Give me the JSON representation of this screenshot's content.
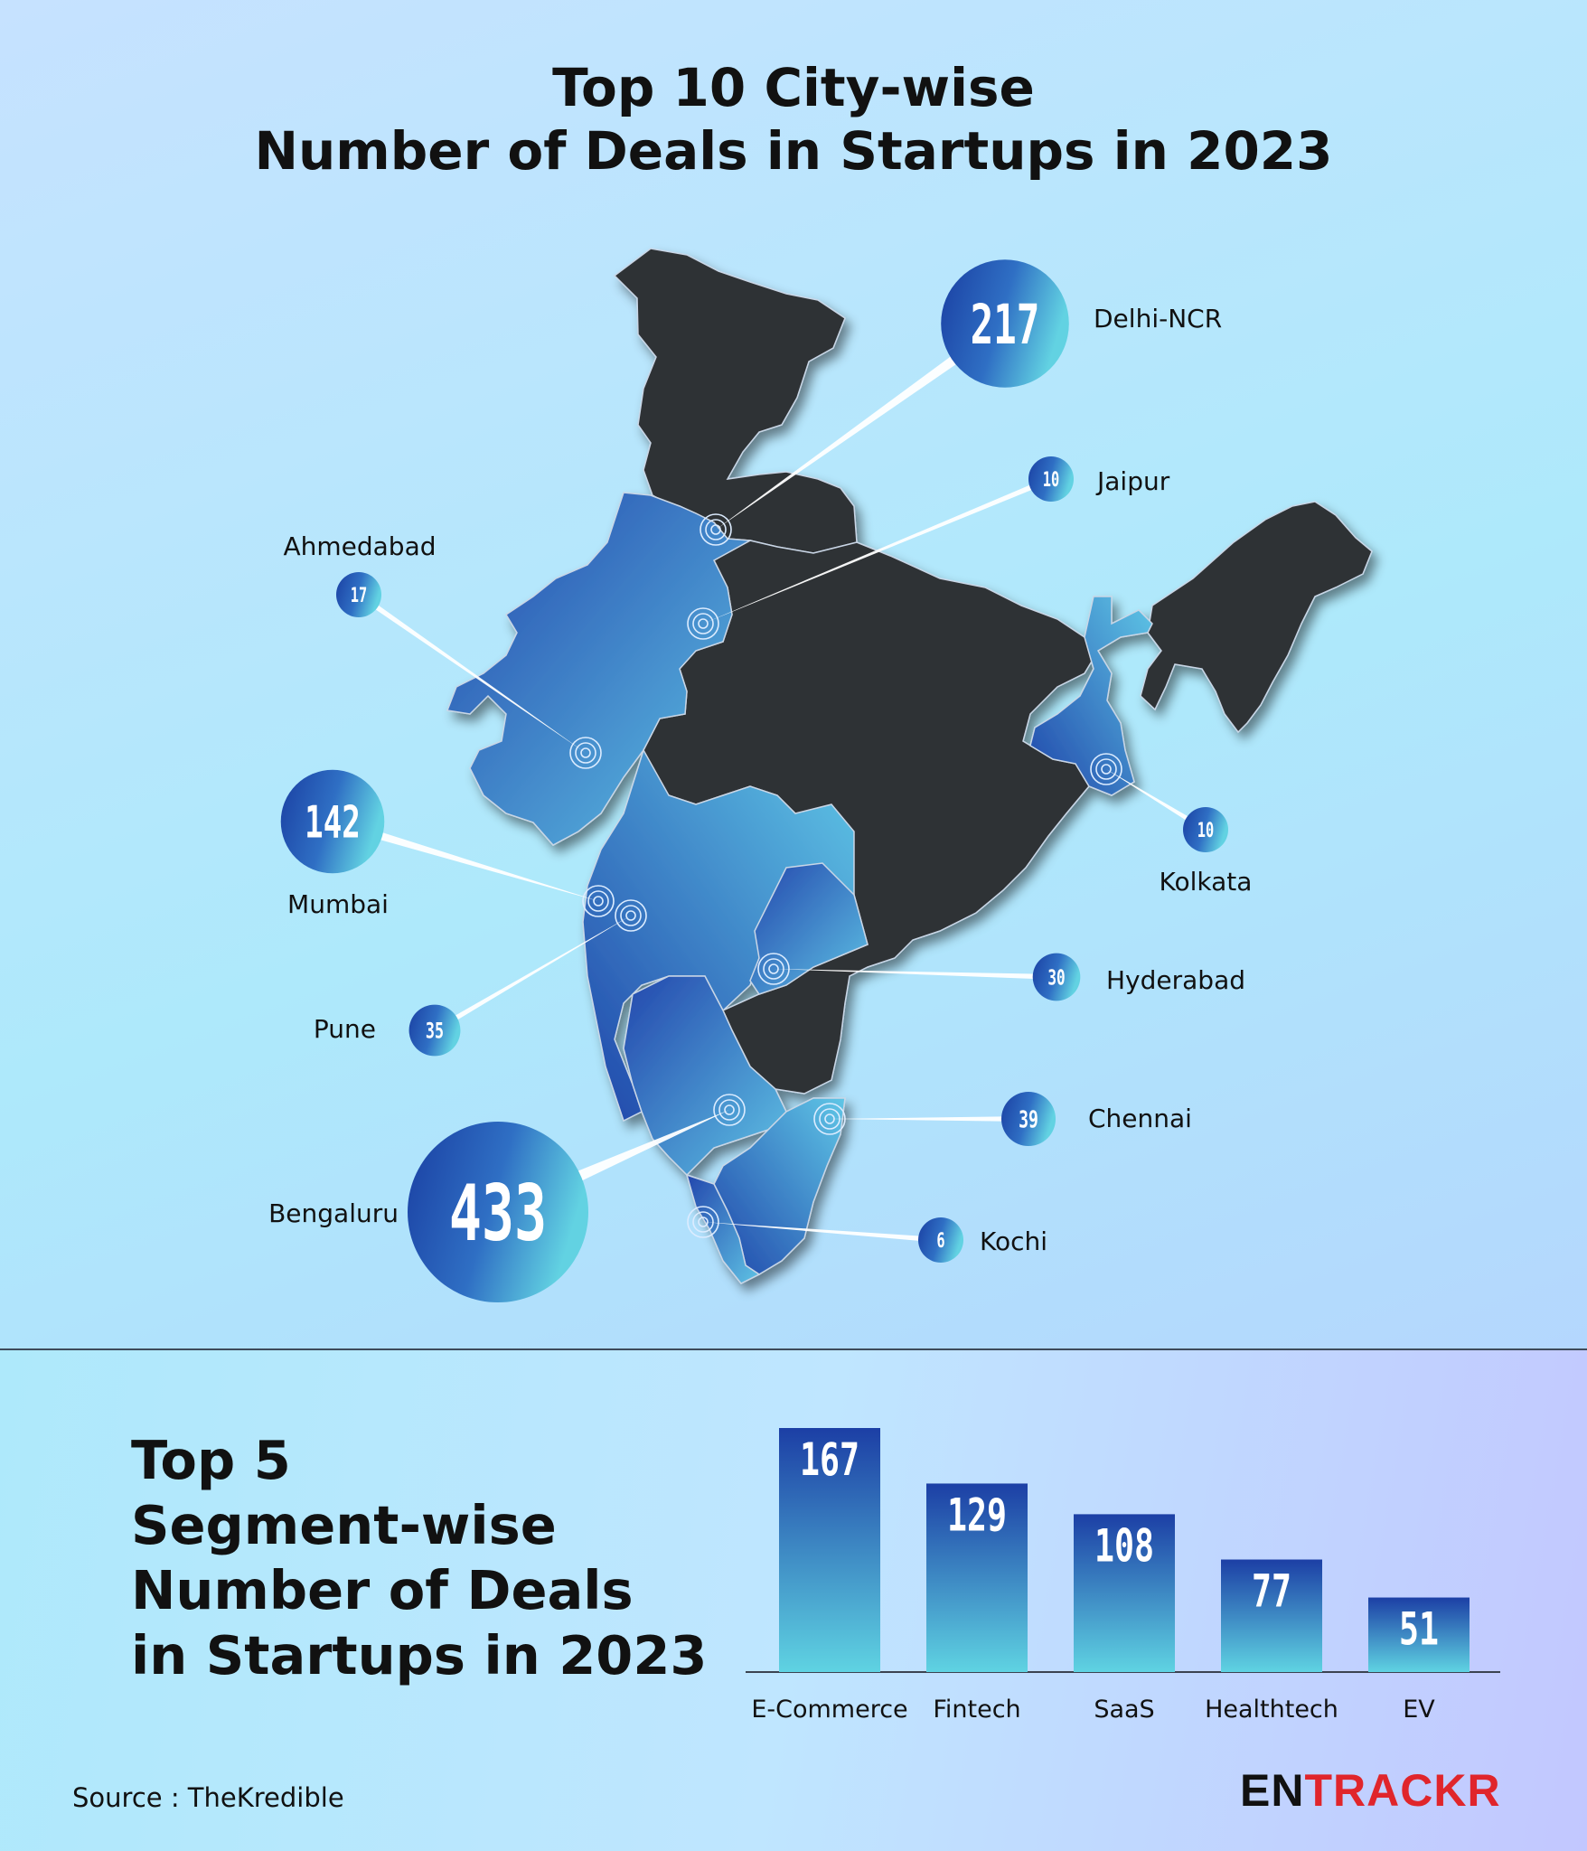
{
  "header": {
    "title_line1": "Top 10 City-wise",
    "title_line2": "Number of Deals in Startups in 2023"
  },
  "chart_data": [
    {
      "type": "bubble-map",
      "title": "Top 10 City-wise Number of Deals in Startups in 2023",
      "categories": [
        "Bengaluru",
        "Delhi-NCR",
        "Mumbai",
        "Chennai",
        "Pune",
        "Hyderabad",
        "Ahmedabad",
        "Jaipur",
        "Kolkata",
        "Kochi"
      ],
      "values": [
        433,
        217,
        142,
        39,
        35,
        30,
        17,
        10,
        10,
        6
      ]
    },
    {
      "type": "bar",
      "title": "Top 5 Segment-wise Number of Deals in Startups in 2023",
      "categories": [
        "E-Commerce",
        "Fintech",
        "SaaS",
        "Healthtech",
        "EV"
      ],
      "values": [
        167,
        129,
        108,
        77,
        51
      ],
      "ylim": [
        0,
        167
      ],
      "grid": false
    }
  ],
  "segments": {
    "title_line1": "Top 5",
    "title_line2": "Segment-wise",
    "title_line3": "Number of Deals",
    "title_line4": "in Startups in 2023"
  },
  "footer": {
    "source": "Source : TheKredible",
    "brand_part1": "EN",
    "brand_part2": "TRACKR"
  },
  "colors": {
    "bubble_dark": "#1b46a8",
    "bubble_light": "#5ccfe0",
    "map_dark": "#2f3134",
    "highlight": "#3d86d2",
    "brand_red": "#e0252b"
  }
}
